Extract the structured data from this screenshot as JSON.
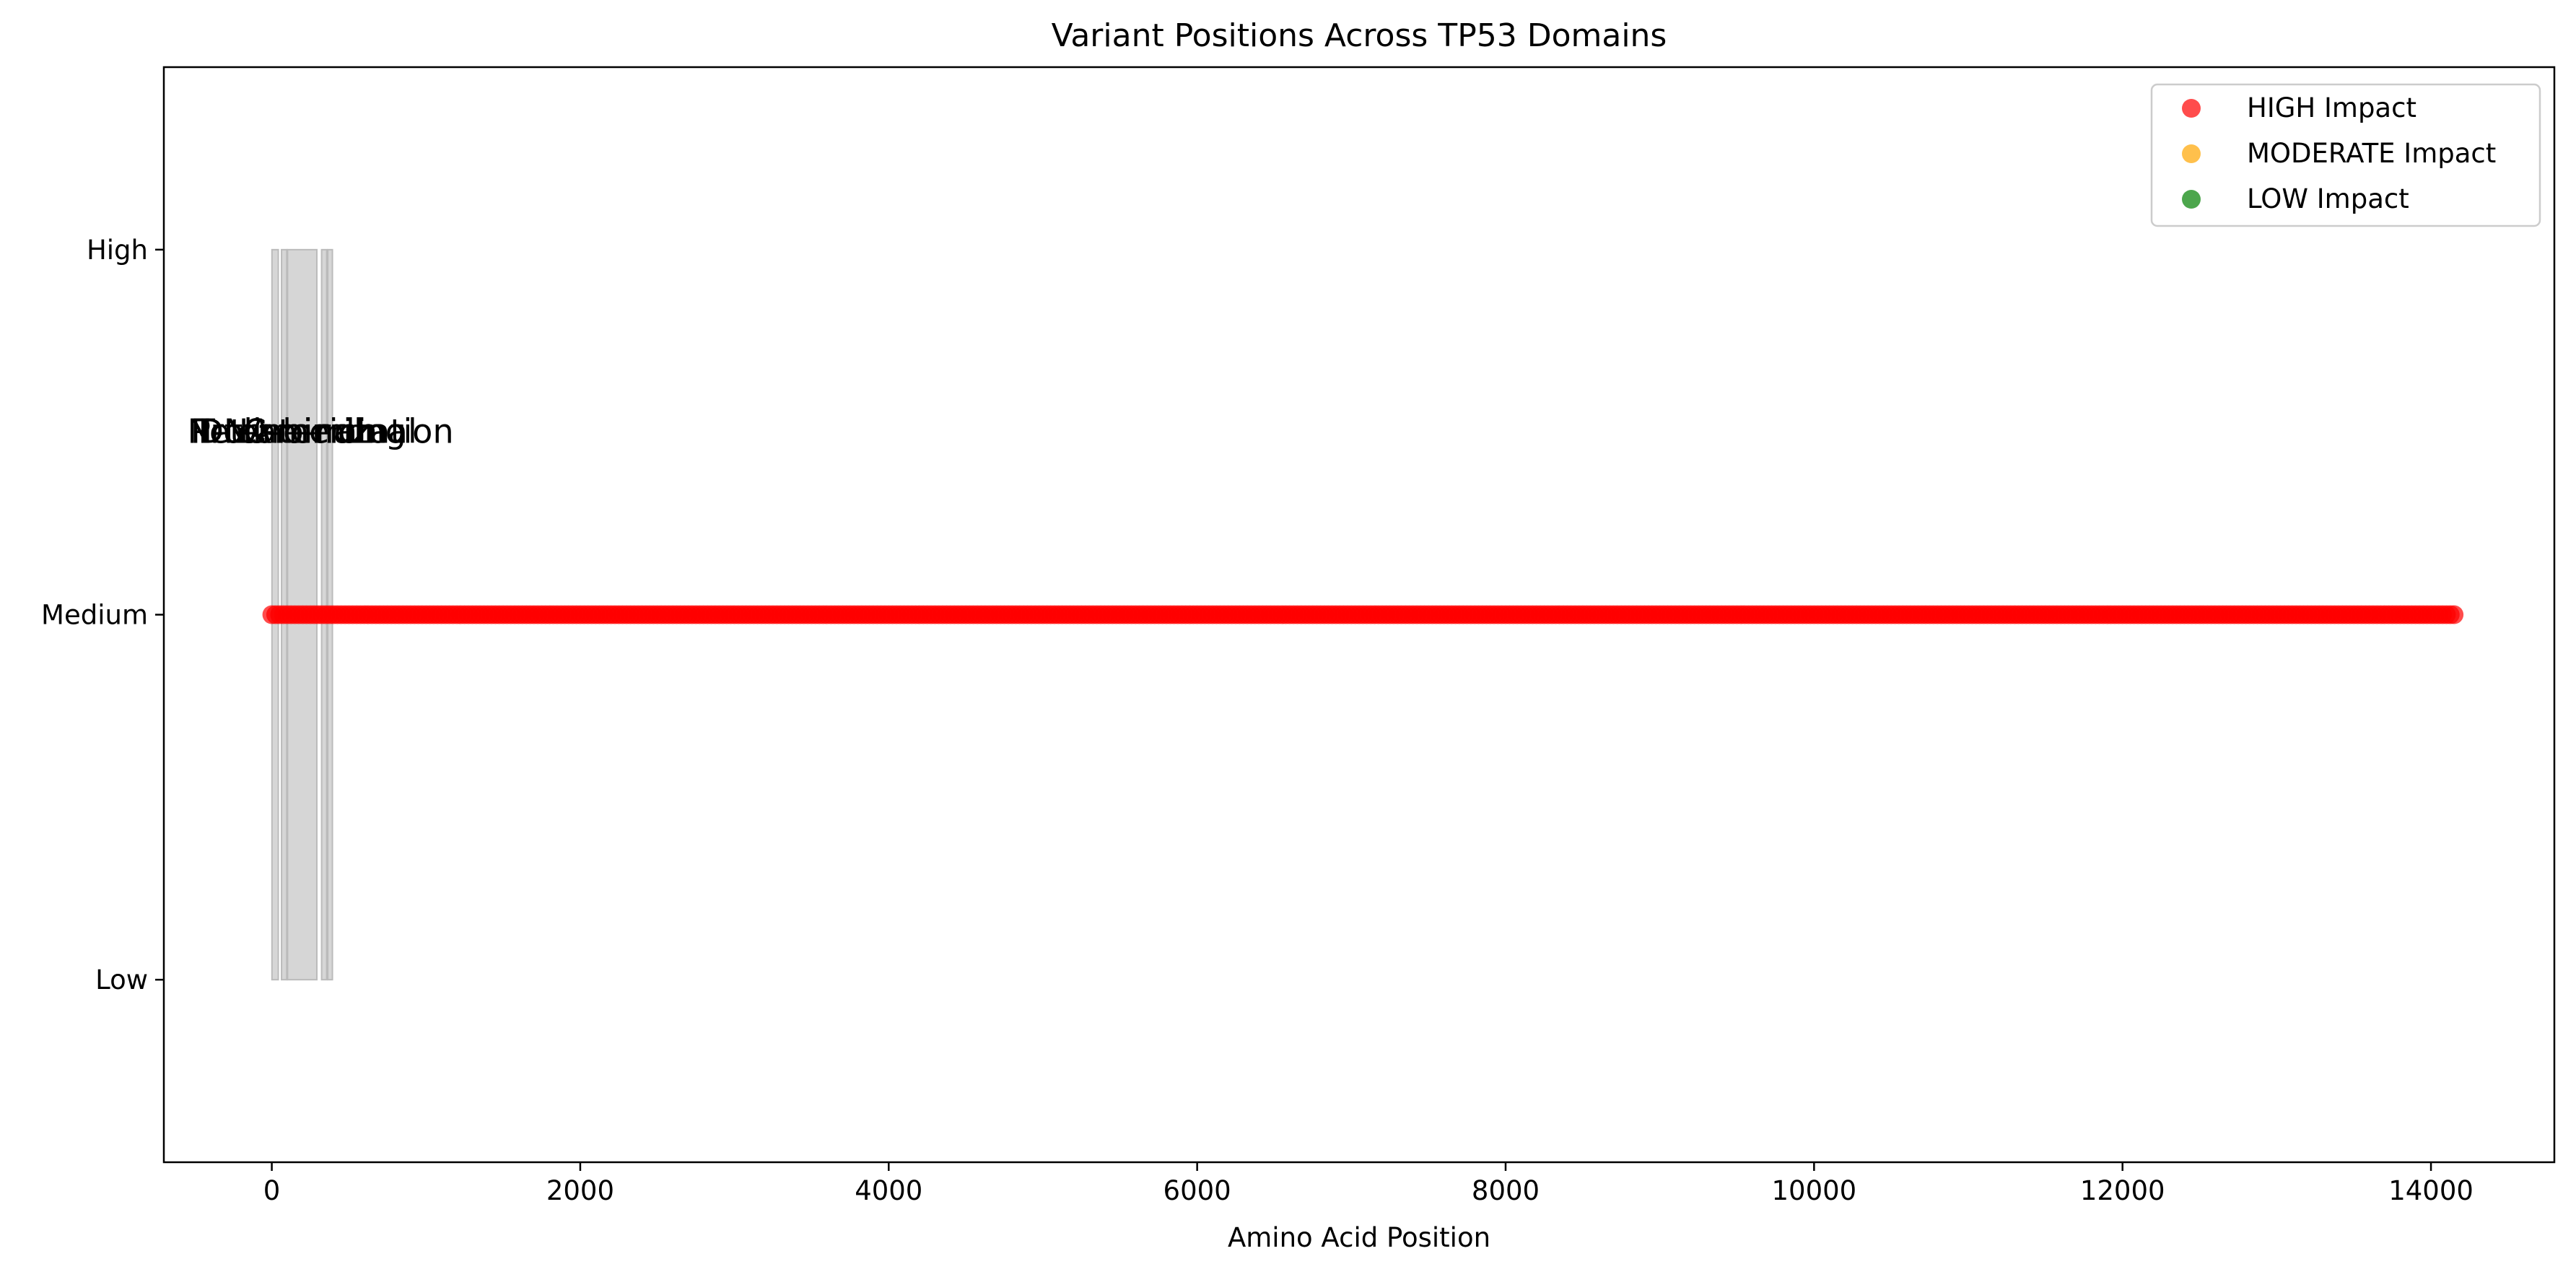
{
  "chart_data": {
    "type": "scatter",
    "title": "Variant Positions Across TP53 Domains",
    "xlabel": "Amino Acid Position",
    "ylabel": "",
    "xlim": [
      -700,
      14800
    ],
    "ylim": [
      0.5,
      3.5
    ],
    "xticks": [
      0,
      2000,
      4000,
      6000,
      8000,
      10000,
      12000,
      14000
    ],
    "xtick_labels": [
      "0",
      "2000",
      "4000",
      "6000",
      "8000",
      "10000",
      "12000",
      "14000"
    ],
    "yticks": [
      1,
      2,
      3
    ],
    "ytick_labels": [
      "Low",
      "Medium",
      "High"
    ],
    "grid": false,
    "legend_position": "top-right",
    "series": [
      {
        "name": "HIGH Impact",
        "color": "#ff0000",
        "x_range": [
          0,
          14150
        ],
        "x_step": 25,
        "y": 2
      },
      {
        "name": "MODERATE Impact",
        "color": "#ffa500",
        "points": []
      },
      {
        "name": "LOW Impact",
        "color": "#008000",
        "points": []
      }
    ],
    "domains": [
      {
        "name": "N-terminal",
        "start": 1,
        "end": 42
      },
      {
        "name": "Proline-rich",
        "start": 63,
        "end": 97
      },
      {
        "name": "DNA-binding",
        "start": 102,
        "end": 292
      },
      {
        "name": "Tetramerization",
        "start": 323,
        "end": 356
      },
      {
        "name": "C-terminal",
        "start": 363,
        "end": 393
      }
    ],
    "domain_band_y": [
      1,
      3
    ],
    "domain_label_y": 2.5,
    "domain_color": "#bbbbbb"
  }
}
